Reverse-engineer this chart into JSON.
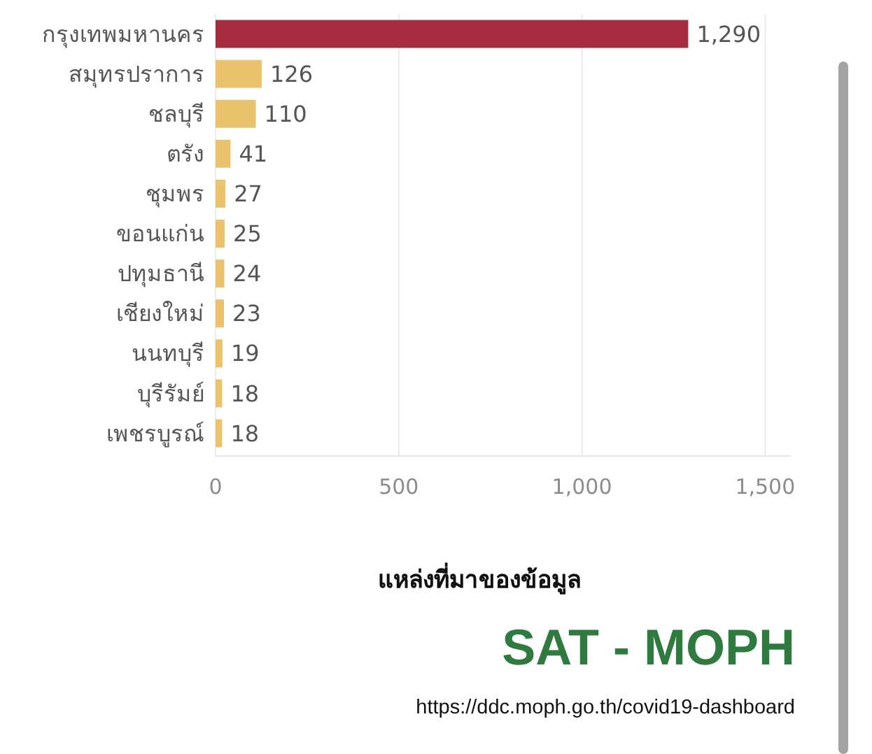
{
  "chart_data": {
    "type": "bar",
    "orientation": "horizontal",
    "categories": [
      "กรุงเทพมหานคร",
      "สมุทรปราการ",
      "ชลบุรี",
      "ตรัง",
      "ชุมพร",
      "ขอนแก่น",
      "ปทุมธานี",
      "เชียงใหม่",
      "นนทบุรี",
      "บุรีรัมย์",
      "เพชรบูรณ์"
    ],
    "values": [
      1290,
      126,
      110,
      41,
      27,
      25,
      24,
      23,
      19,
      18,
      18
    ],
    "colors": [
      "#a62c40",
      "#ebc36c",
      "#ebc36c",
      "#ebc36c",
      "#ebc36c",
      "#ebc36c",
      "#ebc36c",
      "#ebc36c",
      "#ebc36c",
      "#ebc36c",
      "#ebc36c"
    ],
    "value_labels": [
      "1,290",
      "126",
      "110",
      "41",
      "27",
      "25",
      "24",
      "23",
      "19",
      "18",
      "18"
    ],
    "xlim": [
      0,
      1570
    ],
    "xticks": [
      0,
      500,
      {
        "value": 1000,
        "label": "1,000"
      },
      {
        "value": 1500,
        "label": "1,500"
      }
    ],
    "grid": "x",
    "annotations": [
      "แหล่งที่มาของข้อมูล",
      "SAT - MOPH",
      "https://ddc.moph.go.th/covid19-dashboard"
    ]
  }
}
